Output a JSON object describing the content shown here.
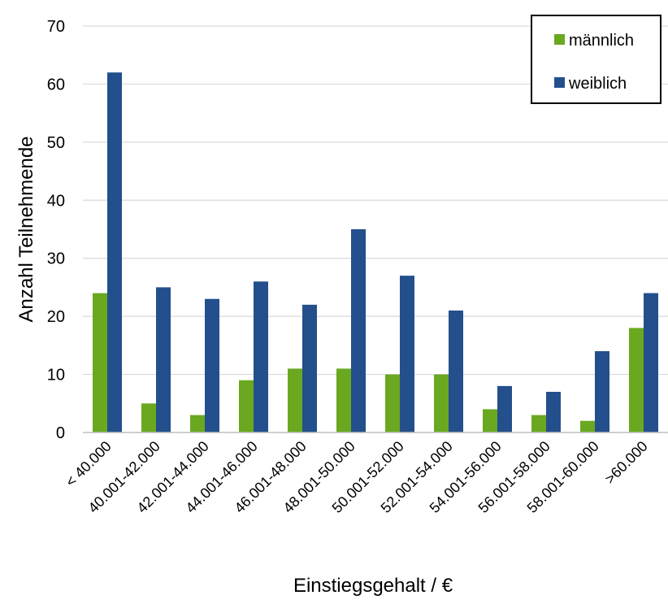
{
  "chart_data": {
    "type": "bar",
    "title": "",
    "xlabel": "Einstiegsgehalt / €",
    "ylabel": "Anzahl Teilnehmende",
    "ylim": [
      0,
      70
    ],
    "yticks": [
      0,
      10,
      20,
      30,
      40,
      50,
      60,
      70
    ],
    "grid": true,
    "legend_position": "top-right",
    "categories": [
      "< 40.000",
      "40.001-42.000",
      "42.001-44.000",
      "44.001-46.000",
      "46.001-48.000",
      "48.001-50.000",
      "50.001-52.000",
      "52.001-54.000",
      "54.001-56.000",
      "56.001-58.000",
      "58.001-60.000",
      ">60.000"
    ],
    "series": [
      {
        "name": "männlich",
        "color": "#6aa820",
        "values": [
          24,
          5,
          3,
          9,
          11,
          11,
          10,
          10,
          4,
          3,
          2,
          18
        ]
      },
      {
        "name": "weiblich",
        "color": "#234f8c",
        "values": [
          62,
          25,
          23,
          26,
          22,
          35,
          27,
          21,
          8,
          7,
          14,
          24
        ]
      }
    ]
  }
}
